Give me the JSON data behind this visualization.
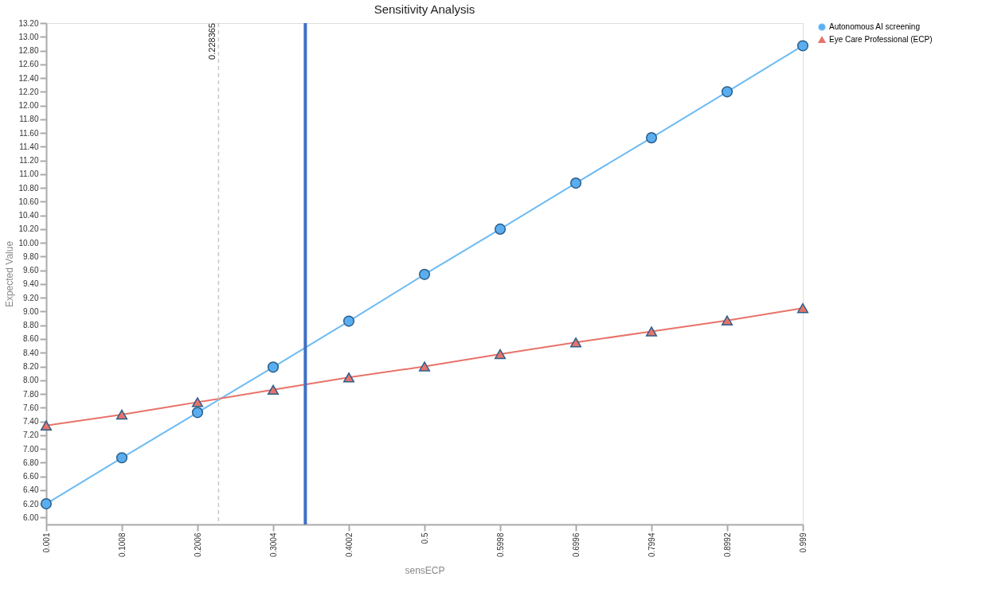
{
  "chart_data": {
    "type": "line",
    "title": "Sensitivity Analysis",
    "xlabel": "sensECP",
    "ylabel": "Expected Value",
    "x": [
      0.001,
      0.1008,
      0.2006,
      0.3004,
      0.4002,
      0.5,
      0.5998,
      0.6996,
      0.7994,
      0.8992,
      0.999
    ],
    "series": [
      {
        "name": "Autonomous AI screening",
        "color": "#6dbbf5",
        "marker": "circle",
        "values": [
          6.2,
          6.87,
          7.53,
          8.19,
          8.86,
          9.54,
          10.2,
          10.87,
          11.53,
          12.2,
          12.87
        ]
      },
      {
        "name": "Eye Care Professional (ECP)",
        "color": "#e8736a",
        "marker": "triangle",
        "values": [
          7.34,
          7.5,
          7.68,
          7.86,
          8.04,
          8.2,
          8.38,
          8.55,
          8.71,
          8.87,
          9.05
        ]
      }
    ],
    "xlim": [
      0.001,
      0.999
    ],
    "xticks": [
      0.001,
      0.1008,
      0.2006,
      0.3004,
      0.4002,
      0.5,
      0.5998,
      0.6996,
      0.7994,
      0.8992,
      0.999
    ],
    "ylim": [
      5.9,
      13.2
    ],
    "yticks": [
      {
        "value": 6,
        "label": "6.00"
      },
      {
        "value": 6.2,
        "label": "6.20"
      },
      {
        "value": 6.4,
        "label": "6.40"
      },
      {
        "value": 6.6,
        "label": "6.60"
      },
      {
        "value": 6.8,
        "label": "6.80"
      },
      {
        "value": 7,
        "label": "7.00"
      },
      {
        "value": 7.2,
        "label": "7.20"
      },
      {
        "value": 7.4,
        "label": "7.40"
      },
      {
        "value": 7.6,
        "label": "7.60"
      },
      {
        "value": 7.8,
        "label": "7.80"
      },
      {
        "value": 8,
        "label": "8.00"
      },
      {
        "value": 8.2,
        "label": "8.20"
      },
      {
        "value": 8.4,
        "label": "8.40"
      },
      {
        "value": 8.6,
        "label": "8.60"
      },
      {
        "value": 8.8,
        "label": "8.80"
      },
      {
        "value": 9,
        "label": "9.00"
      },
      {
        "value": 9.2,
        "label": "9.20"
      },
      {
        "value": 9.4,
        "label": "9.40"
      },
      {
        "value": 9.6,
        "label": "9.60"
      },
      {
        "value": 9.8,
        "label": "9.80"
      },
      {
        "value": 10,
        "label": "10.00"
      },
      {
        "value": 10.2,
        "label": "10.20"
      },
      {
        "value": 10.4,
        "label": "10.40"
      },
      {
        "value": 10.6,
        "label": "10.60"
      },
      {
        "value": 10.8,
        "label": "10.80"
      },
      {
        "value": 11,
        "label": "11.00"
      },
      {
        "value": 11.2,
        "label": "11.20"
      },
      {
        "value": 11.4,
        "label": "11.40"
      },
      {
        "value": 11.6,
        "label": "11.60"
      },
      {
        "value": 11.8,
        "label": "11.80"
      },
      {
        "value": 12,
        "label": "12.00"
      },
      {
        "value": 12.2,
        "label": "12.20"
      },
      {
        "value": 12.4,
        "label": "12.40"
      },
      {
        "value": 12.6,
        "label": "12.60"
      },
      {
        "value": 12.8,
        "label": "12.80"
      },
      {
        "value": 13,
        "label": "13.00"
      },
      {
        "value": 13.2,
        "label": "13.20"
      }
    ],
    "ref_lines": [
      {
        "axis": "x",
        "value": 0.228365,
        "label": "0.228365",
        "color": "#c8c8c8",
        "line_style": "dashed"
      },
      {
        "axis": "x",
        "value": 0.3428,
        "color": "#3f6fc6",
        "line_style": "solid"
      }
    ],
    "grid": false,
    "legend": "top right",
    "line_style": "solid"
  }
}
